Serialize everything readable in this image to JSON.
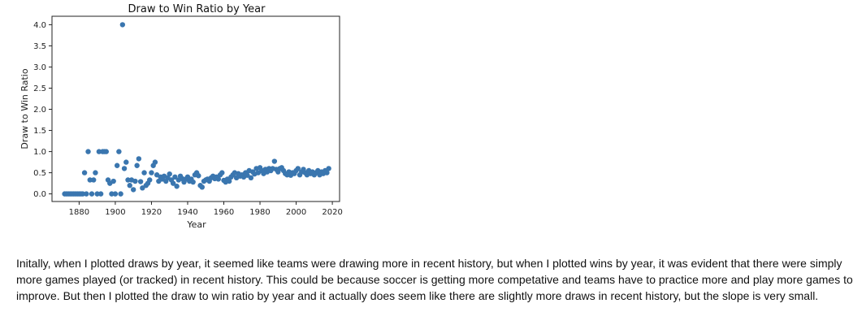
{
  "chart_data": {
    "type": "scatter",
    "title": "Draw to Win Ratio by Year",
    "xlabel": "Year",
    "ylabel": "Draw to Win Ratio",
    "xlim": [
      1865,
      2024
    ],
    "ylim": [
      -0.18,
      4.2
    ],
    "xticks": [
      1880,
      1900,
      1920,
      1940,
      1960,
      1980,
      2000,
      2020
    ],
    "yticks": [
      0.0,
      0.5,
      1.0,
      1.5,
      2.0,
      2.5,
      3.0,
      3.5,
      4.0
    ],
    "marker_color": "#3a76af",
    "grid": false,
    "series": [
      {
        "points": [
          [
            1872,
            0.0
          ],
          [
            1873,
            0.0
          ],
          [
            1874,
            0.0
          ],
          [
            1875,
            0.0
          ],
          [
            1876,
            0.0
          ],
          [
            1877,
            0.0
          ],
          [
            1878,
            0.0
          ],
          [
            1879,
            0.0
          ],
          [
            1880,
            0.0
          ],
          [
            1881,
            0.0
          ],
          [
            1882,
            0.0
          ],
          [
            1883,
            0.5
          ],
          [
            1884,
            0.0
          ],
          [
            1885,
            1.0
          ],
          [
            1886,
            0.33
          ],
          [
            1887,
            0.0
          ],
          [
            1888,
            0.33
          ],
          [
            1889,
            0.5
          ],
          [
            1890,
            0.0
          ],
          [
            1891,
            1.0
          ],
          [
            1892,
            0.0
          ],
          [
            1893,
            1.0
          ],
          [
            1894,
            1.0
          ],
          [
            1895,
            1.0
          ],
          [
            1896,
            0.33
          ],
          [
            1897,
            0.25
          ],
          [
            1898,
            0.0
          ],
          [
            1899,
            0.3
          ],
          [
            1900,
            0.0
          ],
          [
            1901,
            0.67
          ],
          [
            1902,
            1.0
          ],
          [
            1903,
            0.0
          ],
          [
            1904,
            4.0
          ],
          [
            1905,
            0.6
          ],
          [
            1906,
            0.75
          ],
          [
            1907,
            0.33
          ],
          [
            1908,
            0.2
          ],
          [
            1909,
            0.33
          ],
          [
            1910,
            0.1
          ],
          [
            1911,
            0.3
          ],
          [
            1912,
            0.67
          ],
          [
            1913,
            0.83
          ],
          [
            1914,
            0.29
          ],
          [
            1915,
            0.14
          ],
          [
            1916,
            0.5
          ],
          [
            1917,
            0.2
          ],
          [
            1918,
            0.25
          ],
          [
            1919,
            0.33
          ],
          [
            1920,
            0.5
          ],
          [
            1921,
            0.67
          ],
          [
            1922,
            0.75
          ],
          [
            1923,
            0.45
          ],
          [
            1924,
            0.3
          ],
          [
            1925,
            0.4
          ],
          [
            1926,
            0.35
          ],
          [
            1927,
            0.42
          ],
          [
            1928,
            0.3
          ],
          [
            1929,
            0.38
          ],
          [
            1930,
            0.47
          ],
          [
            1931,
            0.33
          ],
          [
            1932,
            0.25
          ],
          [
            1933,
            0.4
          ],
          [
            1934,
            0.18
          ],
          [
            1935,
            0.33
          ],
          [
            1936,
            0.42
          ],
          [
            1937,
            0.36
          ],
          [
            1938,
            0.28
          ],
          [
            1939,
            0.35
          ],
          [
            1940,
            0.4
          ],
          [
            1941,
            0.3
          ],
          [
            1942,
            0.35
          ],
          [
            1943,
            0.28
          ],
          [
            1944,
            0.45
          ],
          [
            1945,
            0.5
          ],
          [
            1946,
            0.43
          ],
          [
            1947,
            0.2
          ],
          [
            1948,
            0.16
          ],
          [
            1949,
            0.3
          ],
          [
            1950,
            0.33
          ],
          [
            1951,
            0.35
          ],
          [
            1952,
            0.3
          ],
          [
            1953,
            0.38
          ],
          [
            1954,
            0.42
          ],
          [
            1955,
            0.36
          ],
          [
            1956,
            0.4
          ],
          [
            1957,
            0.35
          ],
          [
            1958,
            0.45
          ],
          [
            1959,
            0.5
          ],
          [
            1960,
            0.32
          ],
          [
            1961,
            0.28
          ],
          [
            1962,
            0.35
          ],
          [
            1963,
            0.3
          ],
          [
            1964,
            0.4
          ],
          [
            1965,
            0.45
          ],
          [
            1966,
            0.5
          ],
          [
            1967,
            0.38
          ],
          [
            1968,
            0.48
          ],
          [
            1969,
            0.42
          ],
          [
            1970,
            0.45
          ],
          [
            1971,
            0.4
          ],
          [
            1972,
            0.5
          ],
          [
            1973,
            0.44
          ],
          [
            1974,
            0.55
          ],
          [
            1975,
            0.38
          ],
          [
            1976,
            0.52
          ],
          [
            1977,
            0.47
          ],
          [
            1978,
            0.6
          ],
          [
            1979,
            0.5
          ],
          [
            1980,
            0.62
          ],
          [
            1981,
            0.55
          ],
          [
            1982,
            0.48
          ],
          [
            1983,
            0.58
          ],
          [
            1984,
            0.52
          ],
          [
            1985,
            0.6
          ],
          [
            1986,
            0.55
          ],
          [
            1987,
            0.6
          ],
          [
            1988,
            0.77
          ],
          [
            1989,
            0.58
          ],
          [
            1990,
            0.52
          ],
          [
            1991,
            0.6
          ],
          [
            1992,
            0.62
          ],
          [
            1993,
            0.55
          ],
          [
            1994,
            0.48
          ],
          [
            1995,
            0.45
          ],
          [
            1996,
            0.52
          ],
          [
            1997,
            0.44
          ],
          [
            1998,
            0.5
          ],
          [
            1999,
            0.48
          ],
          [
            2000,
            0.55
          ],
          [
            2001,
            0.6
          ],
          [
            2002,
            0.45
          ],
          [
            2003,
            0.52
          ],
          [
            2004,
            0.58
          ],
          [
            2005,
            0.5
          ],
          [
            2006,
            0.45
          ],
          [
            2007,
            0.55
          ],
          [
            2008,
            0.48
          ],
          [
            2009,
            0.52
          ],
          [
            2010,
            0.45
          ],
          [
            2011,
            0.5
          ],
          [
            2012,
            0.55
          ],
          [
            2013,
            0.45
          ],
          [
            2014,
            0.52
          ],
          [
            2015,
            0.48
          ],
          [
            2016,
            0.55
          ],
          [
            2017,
            0.5
          ],
          [
            2018,
            0.6
          ]
        ]
      }
    ]
  },
  "note": {
    "text": "Initally, when I plotted draws by year, it seemed like teams were drawing more in recent history, but when I plotted wins by year, it was evident that there were simply more games played (or tracked) in recent history. This could be because soccer is getting more competative and teams have to practice more and play more games to improve. But then I plotted the draw to win ratio by year and it actually does seem like there are slightly more draws in recent history, but the slope is very small."
  }
}
